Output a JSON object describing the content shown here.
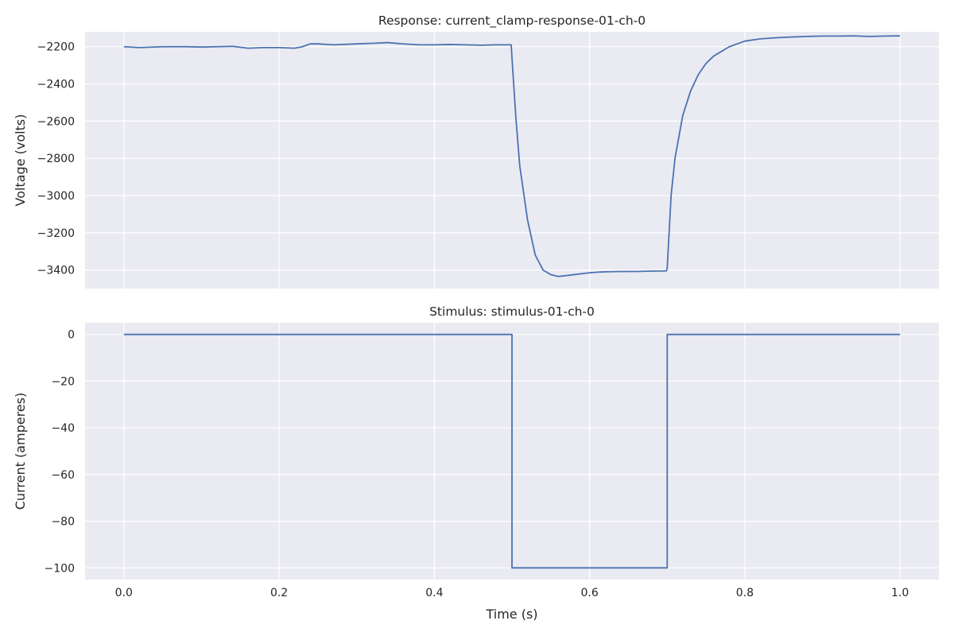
{
  "chart_data": [
    {
      "type": "line",
      "title": "Response: current_clamp-response-01-ch-0",
      "xlabel": "",
      "ylabel": "Voltage (volts)",
      "xlim": [
        -0.05,
        1.05
      ],
      "ylim": [
        -3500,
        -2120
      ],
      "x_ticks": [
        0.0,
        0.2,
        0.4,
        0.6,
        0.8,
        1.0
      ],
      "x_tick_labels": [],
      "y_ticks": [
        -3400,
        -3200,
        -3000,
        -2800,
        -2600,
        -2400,
        -2200
      ],
      "y_tick_labels": [
        "−3400",
        "−3200",
        "−3000",
        "−2800",
        "−2600",
        "−2400",
        "−2200"
      ],
      "grid": true,
      "color": "#4c72b0",
      "series": [
        {
          "x": [
            0.0,
            0.02,
            0.05,
            0.08,
            0.1,
            0.12,
            0.14,
            0.16,
            0.18,
            0.2,
            0.22,
            0.23,
            0.24,
            0.25,
            0.27,
            0.3,
            0.32,
            0.34,
            0.36,
            0.38,
            0.4,
            0.42,
            0.44,
            0.46,
            0.48,
            0.499,
            0.5,
            0.505,
            0.51,
            0.52,
            0.53,
            0.54,
            0.55,
            0.56,
            0.57,
            0.58,
            0.59,
            0.6,
            0.61,
            0.62,
            0.64,
            0.66,
            0.68,
            0.699,
            0.7,
            0.705,
            0.71,
            0.72,
            0.73,
            0.74,
            0.75,
            0.76,
            0.78,
            0.8,
            0.82,
            0.84,
            0.86,
            0.88,
            0.9,
            0.92,
            0.94,
            0.96,
            0.98,
            1.0
          ],
          "y": [
            -2200,
            -2205,
            -2200,
            -2200,
            -2202,
            -2200,
            -2198,
            -2208,
            -2205,
            -2205,
            -2208,
            -2200,
            -2185,
            -2185,
            -2190,
            -2185,
            -2182,
            -2178,
            -2185,
            -2190,
            -2190,
            -2188,
            -2190,
            -2192,
            -2190,
            -2190,
            -2260,
            -2580,
            -2840,
            -3130,
            -3320,
            -3400,
            -3425,
            -3435,
            -3430,
            -3425,
            -3420,
            -3415,
            -3412,
            -3410,
            -3408,
            -3408,
            -3406,
            -3405,
            -3390,
            -3000,
            -2800,
            -2570,
            -2440,
            -2350,
            -2290,
            -2250,
            -2200,
            -2170,
            -2158,
            -2152,
            -2148,
            -2145,
            -2143,
            -2143,
            -2142,
            -2145,
            -2143,
            -2142
          ]
        }
      ]
    },
    {
      "type": "line",
      "title": "Stimulus: stimulus-01-ch-0",
      "xlabel": "Time (s)",
      "ylabel": "Current (amperes)",
      "xlim": [
        -0.05,
        1.05
      ],
      "ylim": [
        -105,
        5
      ],
      "x_ticks": [
        0.0,
        0.2,
        0.4,
        0.6,
        0.8,
        1.0
      ],
      "x_tick_labels": [
        "0.0",
        "0.2",
        "0.4",
        "0.6",
        "0.8",
        "1.0"
      ],
      "y_ticks": [
        -100,
        -80,
        -60,
        -40,
        -20,
        0
      ],
      "y_tick_labels": [
        "−100",
        "−80",
        "−60",
        "−40",
        "−20",
        "0"
      ],
      "grid": true,
      "color": "#4c72b0",
      "series": [
        {
          "x": [
            0.0,
            0.5,
            0.5,
            0.7,
            0.7,
            1.0
          ],
          "y": [
            0,
            0,
            -100,
            -100,
            0,
            0
          ]
        }
      ]
    }
  ]
}
